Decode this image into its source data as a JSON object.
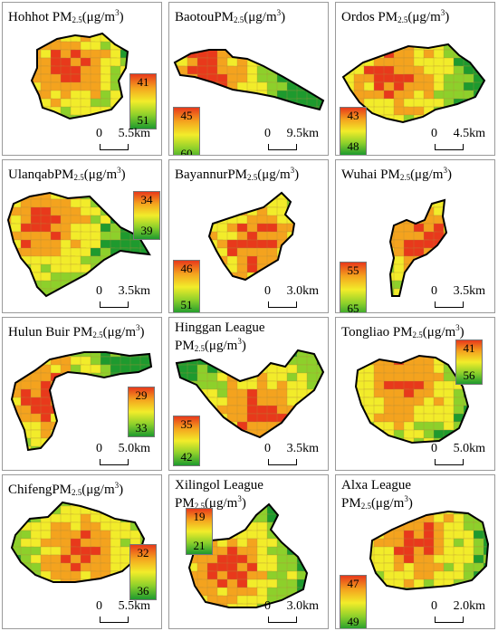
{
  "panels": [
    {
      "key": "hohhot",
      "title_parts": [
        "Hohhot PM",
        "2.5",
        "(μg/m",
        "3",
        ")"
      ],
      "legend_high": "41",
      "legend_low": "51",
      "scale_zero": "0",
      "scale_end": "5.5km"
    },
    {
      "key": "baotou",
      "title_parts": [
        "BaotouPM",
        "2.5",
        "(μg/m",
        "3",
        ")"
      ],
      "legend_high": "45",
      "legend_low": "60",
      "scale_zero": "0",
      "scale_end": "9.5km"
    },
    {
      "key": "ordos",
      "title_parts": [
        "Ordos PM",
        "2.5",
        "(μg/m",
        "3",
        ")"
      ],
      "legend_high": "43",
      "legend_low": "48",
      "scale_zero": "0",
      "scale_end": "4.5km"
    },
    {
      "key": "ulanqab",
      "title_parts": [
        "UlanqabPM",
        "2.5",
        "(μg/m",
        "3",
        ")"
      ],
      "legend_high": "34",
      "legend_low": "39",
      "scale_zero": "0",
      "scale_end": "3.5km"
    },
    {
      "key": "bayannur",
      "title_parts": [
        "BayannurPM",
        "2.5",
        "(μg/m",
        "3",
        ")"
      ],
      "legend_high": "46",
      "legend_low": "51",
      "scale_zero": "0",
      "scale_end": "3.0km"
    },
    {
      "key": "wuhai",
      "title_parts": [
        "Wuhai PM",
        "2.5",
        "(μg/m",
        "3",
        ")"
      ],
      "legend_high": "55",
      "legend_low": "65",
      "scale_zero": "0",
      "scale_end": "3.5km"
    },
    {
      "key": "hulunbuir",
      "title_parts": [
        "Hulun Buir PM",
        "2.5",
        "(μg/m",
        "3",
        ")"
      ],
      "legend_high": "29",
      "legend_low": "33",
      "scale_zero": "0",
      "scale_end": "5.0km"
    },
    {
      "key": "hinggan",
      "title_line1": "Hinggan League",
      "title_parts": [
        "PM",
        "2.5",
        "(μg/m",
        "3",
        ")"
      ],
      "legend_high": "35",
      "legend_low": "42",
      "scale_zero": "0",
      "scale_end": "3.5km"
    },
    {
      "key": "tongliao",
      "title_parts": [
        "Tongliao PM",
        "2.5",
        "(μg/m",
        "3",
        ")"
      ],
      "legend_high": "41",
      "legend_low": "56",
      "scale_zero": "0",
      "scale_end": "5.0km"
    },
    {
      "key": "chifeng",
      "title_parts": [
        "ChifengPM",
        "2.5",
        "(μg/m",
        "3",
        ")"
      ],
      "legend_high": "32",
      "legend_low": "36",
      "scale_zero": "0",
      "scale_end": "5.5km"
    },
    {
      "key": "xilingol",
      "title_line1": "Xilingol League",
      "title_parts": [
        "PM",
        "2.5",
        "(μg/m",
        "3",
        ")"
      ],
      "legend_high": "19",
      "legend_low": "21",
      "scale_zero": "0",
      "scale_end": "3.0km"
    },
    {
      "key": "alxa",
      "title_line1": "Alxa League",
      "title_parts": [
        "PM",
        "2.5",
        "(μg/m",
        "3",
        ")"
      ],
      "legend_high": "47",
      "legend_low": "49",
      "scale_zero": "0",
      "scale_end": "2.0km"
    }
  ],
  "colors": {
    "high": "#e8391b",
    "mid_high": "#f4a31e",
    "mid": "#f2ec2a",
    "mid_low": "#8dd02b",
    "low": "#1e9a2e",
    "outline": "#000000",
    "panel_border": "#9a9a9a"
  }
}
